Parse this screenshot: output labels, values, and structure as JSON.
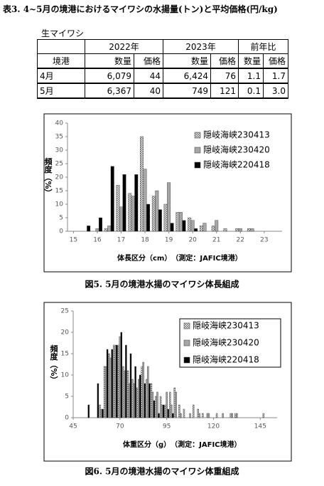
{
  "title": "表3. 4~5月の境港におけるマイワシの水揚量(トン)と平均価格(円/kg)",
  "table": {
    "label": "生マイワシ",
    "groups": [
      "2022年",
      "2023年",
      "前年比"
    ],
    "corner": "境港",
    "subheaders": [
      "数量",
      "価格",
      "数量",
      "価格",
      "数量",
      "価格"
    ],
    "rows": [
      [
        "4月",
        "6,079",
        "44",
        "6,424",
        "76",
        "1.1",
        "1.7"
      ],
      [
        "5月",
        "6,367",
        "40",
        "749",
        "121",
        "0.1",
        "3.0"
      ]
    ]
  },
  "chart_data": [
    {
      "type": "bar",
      "title": "図5.  5月の境港水揚のマイワシ体長組成",
      "xlabel": "体長区分（cm）　（測定：JAFIC境港）",
      "ylabel": "頻度（%）",
      "x": [
        15.5,
        16,
        16.5,
        17,
        17.5,
        18,
        18.5,
        19,
        19.5,
        20,
        20.5,
        21,
        21.5,
        22,
        22.5,
        23
      ],
      "series": [
        {
          "name": "隠岐海峡230413",
          "color": "#ffffff",
          "hatch": true,
          "values": [
            0,
            0,
            1,
            17,
            14,
            35,
            13,
            10,
            7,
            5,
            2,
            2,
            1,
            1,
            1,
            0
          ]
        },
        {
          "name": "隠岐海峡230420",
          "color": "#a6a6a6",
          "values": [
            0,
            1,
            2,
            9,
            13,
            23,
            15,
            18,
            7,
            4,
            3,
            4,
            0,
            1,
            1,
            0
          ]
        },
        {
          "name": "隠岐海峡220418",
          "color": "#000000",
          "values": [
            2,
            5,
            24,
            21,
            21,
            10,
            8,
            3,
            4,
            1,
            0,
            0,
            0,
            0,
            0,
            0
          ]
        }
      ],
      "xlim": [
        14.75,
        23.75
      ],
      "xticks": [
        15,
        16,
        17,
        18,
        19,
        20,
        21,
        22,
        23
      ],
      "ylim": [
        0,
        40
      ],
      "yticks": [
        0,
        5,
        10,
        15,
        20,
        25,
        30,
        35,
        40
      ],
      "legend": "upper right"
    },
    {
      "type": "bar",
      "title": "図6.  5月の境港水揚のマイワシ体重組成",
      "xlabel": "体重区分（g）　（測定：JAFIC境港）",
      "ylabel": "頻度（%）",
      "x": [
        52.5,
        55,
        57.5,
        60,
        62.5,
        65,
        67.5,
        70,
        72.5,
        75,
        77.5,
        80,
        82.5,
        85,
        87.5,
        90,
        92.5,
        95,
        97.5,
        100,
        102.5,
        105,
        107.5,
        110,
        112.5,
        115,
        117.5,
        120,
        122.5,
        125,
        127.5,
        130,
        132.5,
        135,
        137.5,
        140,
        142.5,
        145,
        147.5
      ],
      "series": [
        {
          "name": "隠岐海峡230413",
          "color": "#ffffff",
          "hatch": true,
          "values": [
            0,
            0,
            0,
            3,
            12,
            15,
            17,
            17,
            12,
            11,
            9,
            7,
            12,
            9,
            8,
            5,
            5,
            3,
            6,
            7,
            3,
            2,
            0,
            3,
            2,
            1,
            1,
            0,
            1,
            0,
            0,
            1,
            1,
            0,
            0,
            0,
            0,
            0,
            1
          ]
        },
        {
          "name": "隠岐海峡230420",
          "color": "#a6a6a6",
          "values": [
            0,
            0,
            0,
            2,
            12,
            14,
            17,
            19,
            11,
            8,
            8,
            9,
            13,
            12,
            6,
            6,
            3,
            6,
            3,
            6,
            1,
            0,
            1,
            0,
            1,
            0,
            1,
            0,
            0,
            1,
            0,
            1,
            1,
            0,
            0,
            0,
            0,
            0,
            0
          ]
        },
        {
          "name": "隠岐海峡220418",
          "color": "#000000",
          "values": [
            3,
            0,
            8,
            2,
            16,
            16,
            17,
            20,
            17,
            15,
            12,
            10,
            8,
            8,
            4,
            1,
            3,
            2,
            1,
            0,
            0,
            0,
            0,
            0,
            0,
            0,
            0,
            0,
            0,
            0,
            0,
            0,
            0,
            0,
            0,
            0,
            0,
            0,
            0
          ]
        }
      ],
      "xlim": [
        45,
        154
      ],
      "xticks": [
        45,
        70,
        95,
        120,
        145
      ],
      "ylim": [
        0,
        25
      ],
      "yticks": [
        0,
        5,
        10,
        15,
        20,
        25
      ],
      "legend": "upper right"
    }
  ]
}
